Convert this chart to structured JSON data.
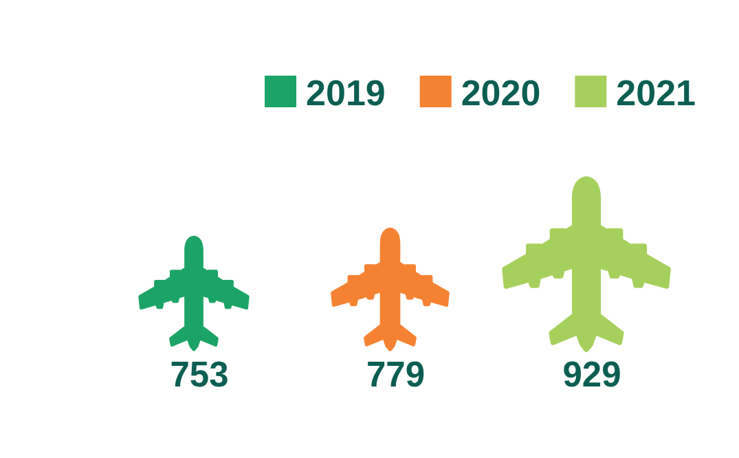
{
  "chart_data": {
    "type": "other",
    "categories": [
      "2019",
      "2020",
      "2021"
    ],
    "values": [
      753,
      779,
      929
    ],
    "colors": [
      "#1ba466",
      "#f58232",
      "#a6d05c"
    ],
    "data_labels": true
  }
}
